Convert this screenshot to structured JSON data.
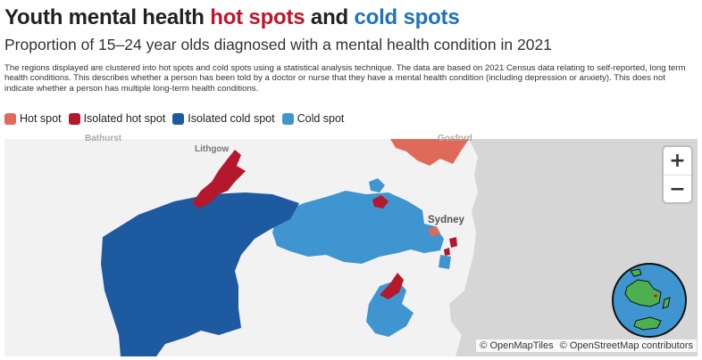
{
  "header": {
    "title_part1": "Youth mental health ",
    "title_hot": "hot spots",
    "title_and": " and ",
    "title_cold": "cold spots",
    "subtitle": "Proportion of 15–24 year olds diagnosed with a mental health condition in 2021",
    "description": "The regions displayed are clustered into hot spots and cold spots using a statistical analysis technique. The data are based on 2021 Census data relating to self-reported, long term health conditions. This describes whether a person has been told by a doctor or nurse that they have a mental health condition (including depression or anxiety). This does not indicate whether a person has multiple long-term health conditions."
  },
  "legend": {
    "items": [
      {
        "label": "Hot spot",
        "color": "#e06a5a"
      },
      {
        "label": "Isolated hot spot",
        "color": "#b3182d"
      },
      {
        "label": "Isolated cold spot",
        "color": "#1e5aa0"
      },
      {
        "label": "Cold spot",
        "color": "#3f95d0"
      }
    ]
  },
  "map": {
    "places": {
      "lithgow": "Lithgow",
      "sydney": "Sydney",
      "bathurst": "Bathurst",
      "gosford": "Gosford"
    },
    "zoom": {
      "in_label": "+",
      "out_label": "−"
    },
    "attribution": {
      "openmaptiles": "© OpenMapTiles",
      "openstreetmap": "© OpenStreetMap contributors"
    },
    "colors": {
      "land": "#f2f2f2",
      "ocean": "#d6d6d6",
      "globe_ocean": "#3f95d0",
      "globe_land": "#4caf50"
    },
    "icons": {
      "globe": "globe-icon"
    }
  }
}
